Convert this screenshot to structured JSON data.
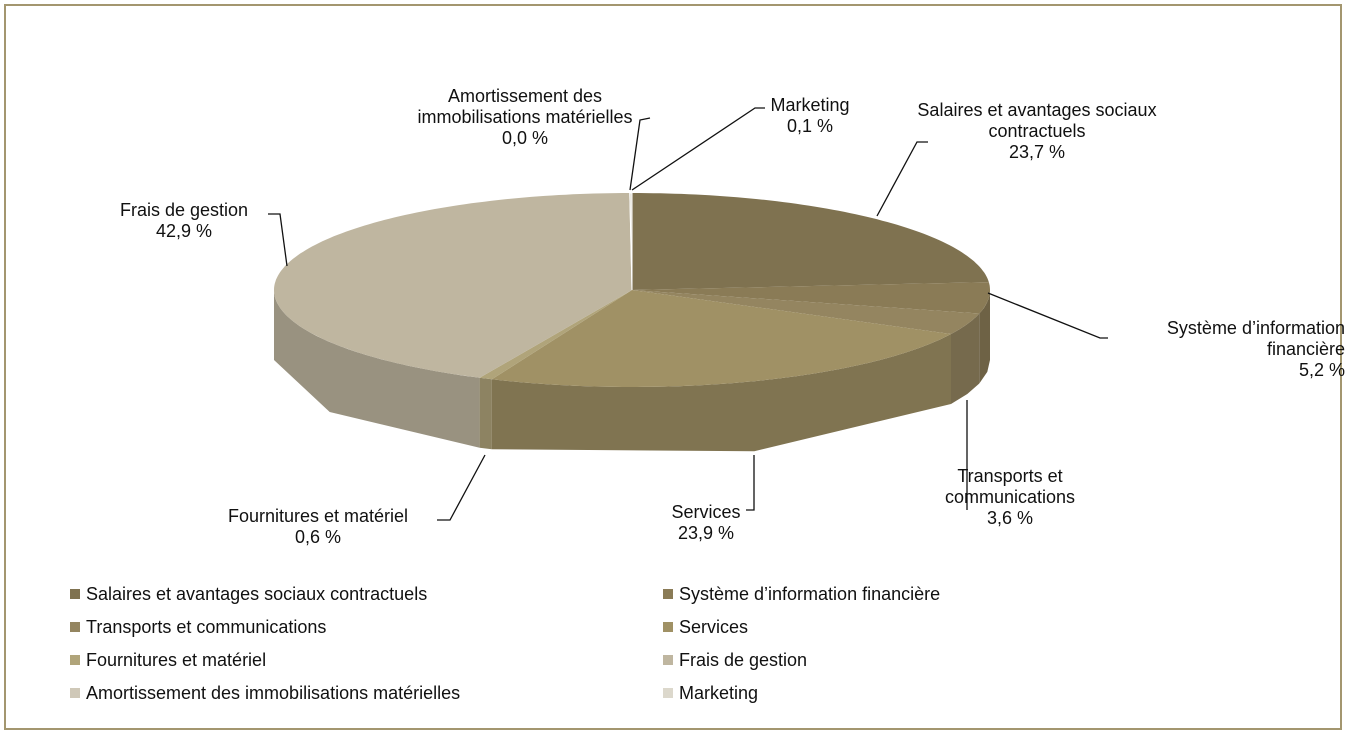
{
  "chart_data": {
    "type": "pie3d",
    "categories": [
      "Salaires et avantages sociaux contractuels",
      "Système d’information financière",
      "Transports et communications",
      "Services",
      "Fournitures et matériel",
      "Frais de gestion",
      "Amortissement des immobilisations matérielles",
      "Marketing"
    ],
    "values": [
      23.7,
      5.2,
      3.6,
      23.9,
      0.6,
      42.9,
      0.0,
      0.1
    ],
    "value_labels": [
      "23,7 %",
      "5,2 %",
      "3,6 %",
      "23,9 %",
      "0,6 %",
      "42,9 %",
      "0,0 %",
      "0,1 %"
    ],
    "colors": [
      "#7f7250",
      "#8a7b56",
      "#948560",
      "#a09165",
      "#b0a47a",
      "#bfb6a0",
      "#cfc8b8",
      "#dcd8cc"
    ],
    "legend": "bottom"
  }
}
